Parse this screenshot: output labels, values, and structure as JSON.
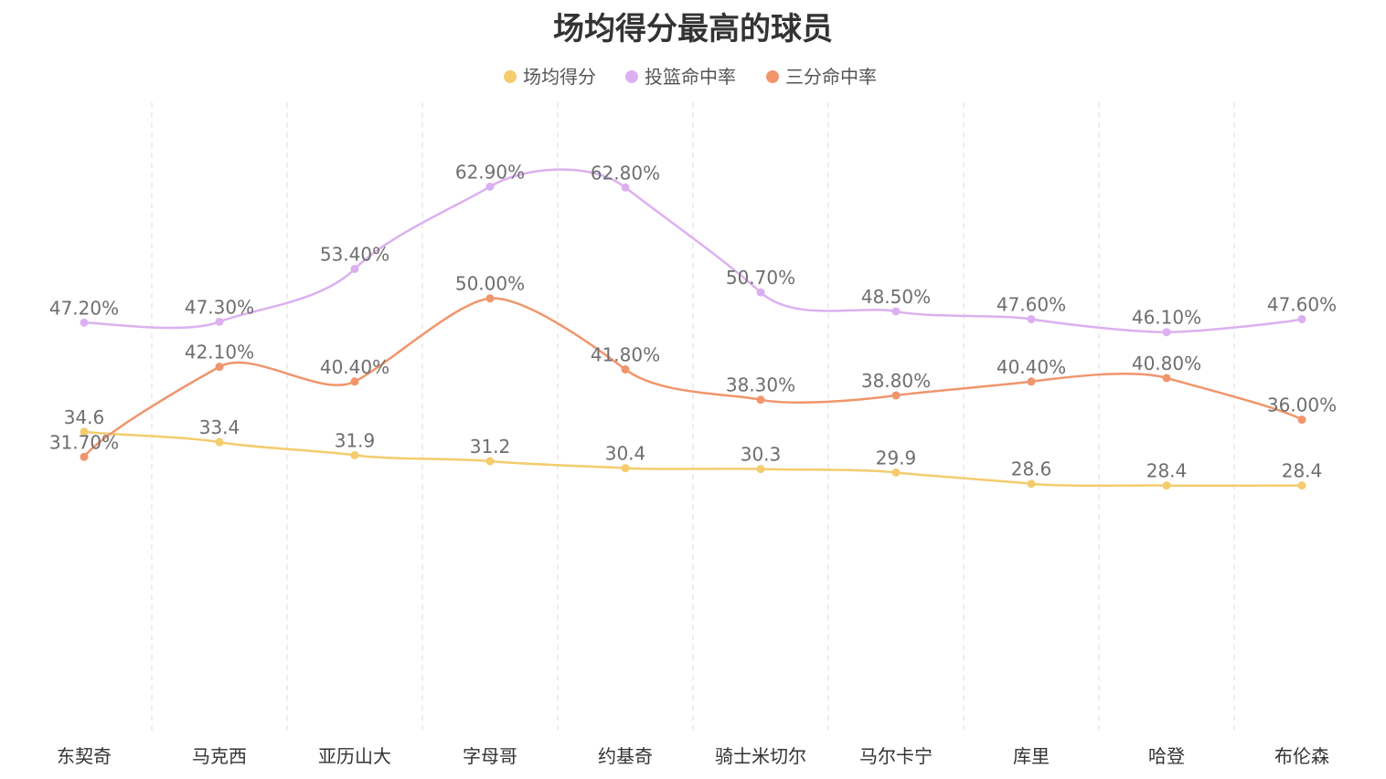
{
  "chart_data": {
    "type": "line",
    "title": "场均得分最高的球员",
    "legend_position": "top",
    "grid": "vertical dashed",
    "smooth": true,
    "ylim": [
      0,
      70
    ],
    "categories": [
      "东契奇",
      "马克西",
      "亚历山大",
      "字母哥",
      "约基奇",
      "骑士米切尔",
      "马尔卡宁",
      "库里",
      "哈登",
      "布伦森"
    ],
    "series": [
      {
        "name": "场均得分",
        "color": "#f4cc6e",
        "suffix": "",
        "decimals": 1,
        "values": [
          34.6,
          33.4,
          31.9,
          31.2,
          30.4,
          30.3,
          29.9,
          28.6,
          28.4,
          28.4
        ]
      },
      {
        "name": "投篮命中率",
        "color": "#dcb0f0",
        "suffix": "%",
        "decimals": 2,
        "values": [
          47.2,
          47.3,
          53.4,
          62.9,
          62.8,
          50.7,
          48.5,
          47.6,
          46.1,
          47.6
        ]
      },
      {
        "name": "三分命中率",
        "color": "#f0956c",
        "suffix": "%",
        "decimals": 2,
        "values": [
          31.7,
          42.1,
          40.4,
          50.0,
          41.8,
          38.3,
          38.8,
          40.4,
          40.8,
          36.0
        ]
      }
    ]
  }
}
